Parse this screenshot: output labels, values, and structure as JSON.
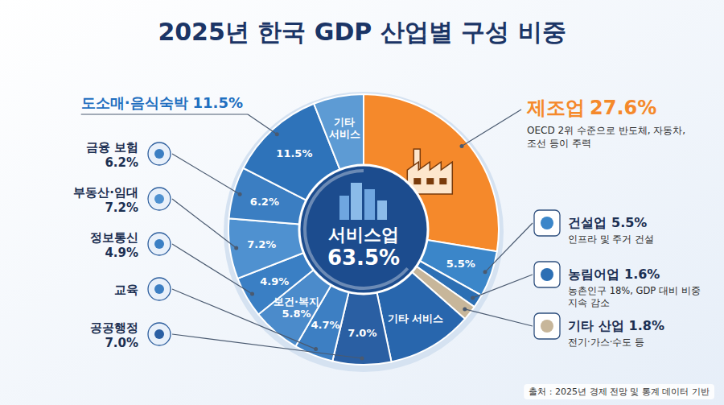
{
  "chart_data": {
    "type": "pie",
    "title": "2025년 한국 GDP 산업별 구성 비중",
    "categories": [
      "제조업",
      "건설업",
      "농림어업",
      "기타 산업",
      null,
      "공공행정",
      "교육",
      null,
      "정보통신",
      "부동산·임대",
      "금융 보험",
      "도소매·음식숙박",
      null
    ],
    "values": [
      27.6,
      5.5,
      1.6,
      1.8,
      10.2,
      7.0,
      4.7,
      5.8,
      4.9,
      7.2,
      6.2,
      11.5,
      6.0
    ],
    "colors": [
      "#f5892b",
      "#3b86c9",
      "#2c6fb4",
      "#c7b69a",
      "#2866ad",
      "#2a5fa3",
      "#3d7fc3",
      "#4b8bcb",
      "#3a7fc4",
      "#4f91d0",
      "#3b7ec2",
      "#2e73ba",
      "#5d9bd4"
    ],
    "callout_value_labels": [
      "27.6%",
      "5.5%",
      "1.6%",
      "1.8%",
      null,
      "7.0%",
      null,
      null,
      "4.9%",
      "7.2%",
      "6.2%",
      "11.5%",
      null
    ],
    "value_labels": [
      null,
      "5.5%",
      null,
      null,
      null,
      "7.0%",
      "4.7%",
      "5.8%",
      "4.9%",
      "7.2%",
      "6.2%",
      "11.5%",
      null
    ],
    "inner_labels": [
      null,
      null,
      null,
      null,
      "기타 서비스",
      null,
      null,
      "보건·복지",
      null,
      null,
      null,
      null,
      "기타 서비스"
    ],
    "notes": [
      "OECD 2위 수준으로 반도체, 자동차, 조선 등이 주력",
      "인프라 및 주거 건설",
      "농촌인구 18%, GDP 대비 비중 지속 감소",
      "전기·가스·수도 등",
      null,
      null,
      null,
      null,
      null,
      null,
      null,
      null,
      null
    ],
    "center_label": "서비스업",
    "center_value": 63.5,
    "center_value_label": "63.5%",
    "source": "출처 : 2025년 경제 전망 및 통계 데이터 기반",
    "data_labels": true
  }
}
